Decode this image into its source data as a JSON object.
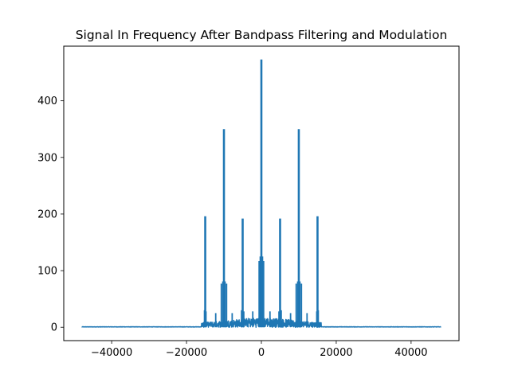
{
  "chart_data": {
    "type": "line",
    "title": "Signal In Frequency After Bandpass Filtering and Modulation",
    "xlabel": "",
    "ylabel": "",
    "xlim": [
      -52800,
      52800
    ],
    "ylim": [
      -23.6,
      496.5
    ],
    "x_ticks": [
      -40000,
      -20000,
      0,
      20000,
      40000
    ],
    "x_tick_labels": [
      "−40000",
      "−20000",
      "0",
      "20000",
      "40000"
    ],
    "y_ticks": [
      0,
      100,
      200,
      300,
      400
    ],
    "y_tick_labels": [
      "0",
      "100",
      "200",
      "300",
      "400"
    ],
    "grid": false,
    "legend": "none",
    "series": [
      {
        "color": "#1f77b4",
        "x_range": [
          -48000,
          48000
        ],
        "peaks": [
          {
            "x": -15000,
            "y": 196
          },
          {
            "x": -10000,
            "y": 350
          },
          {
            "x": -5000,
            "y": 192
          },
          {
            "x": 0,
            "y": 473
          },
          {
            "x": 5000,
            "y": 192
          },
          {
            "x": 10000,
            "y": 350
          },
          {
            "x": 15000,
            "y": 196
          }
        ],
        "sidebands": [
          {
            "x": -15200,
            "y": 30
          },
          {
            "x": -14800,
            "y": 28
          },
          {
            "x": -12200,
            "y": 25
          },
          {
            "x": -10700,
            "y": 77
          },
          {
            "x": -10300,
            "y": 81
          },
          {
            "x": -9700,
            "y": 81
          },
          {
            "x": -9300,
            "y": 77
          },
          {
            "x": -7800,
            "y": 25
          },
          {
            "x": -5300,
            "y": 30
          },
          {
            "x": -4700,
            "y": 28
          },
          {
            "x": -2300,
            "y": 28
          },
          {
            "x": -600,
            "y": 117
          },
          {
            "x": -300,
            "y": 125
          },
          {
            "x": 300,
            "y": 125
          },
          {
            "x": 600,
            "y": 117
          },
          {
            "x": 2300,
            "y": 28
          },
          {
            "x": 4700,
            "y": 28
          },
          {
            "x": 5300,
            "y": 30
          },
          {
            "x": 7800,
            "y": 25
          },
          {
            "x": 9300,
            "y": 77
          },
          {
            "x": 9700,
            "y": 81
          },
          {
            "x": 10300,
            "y": 81
          },
          {
            "x": 10700,
            "y": 77
          },
          {
            "x": 12200,
            "y": 25
          },
          {
            "x": 14800,
            "y": 28
          },
          {
            "x": 15200,
            "y": 30
          }
        ],
        "noise_band": [
          -16000,
          16000
        ],
        "noise_level": 18
      }
    ]
  }
}
